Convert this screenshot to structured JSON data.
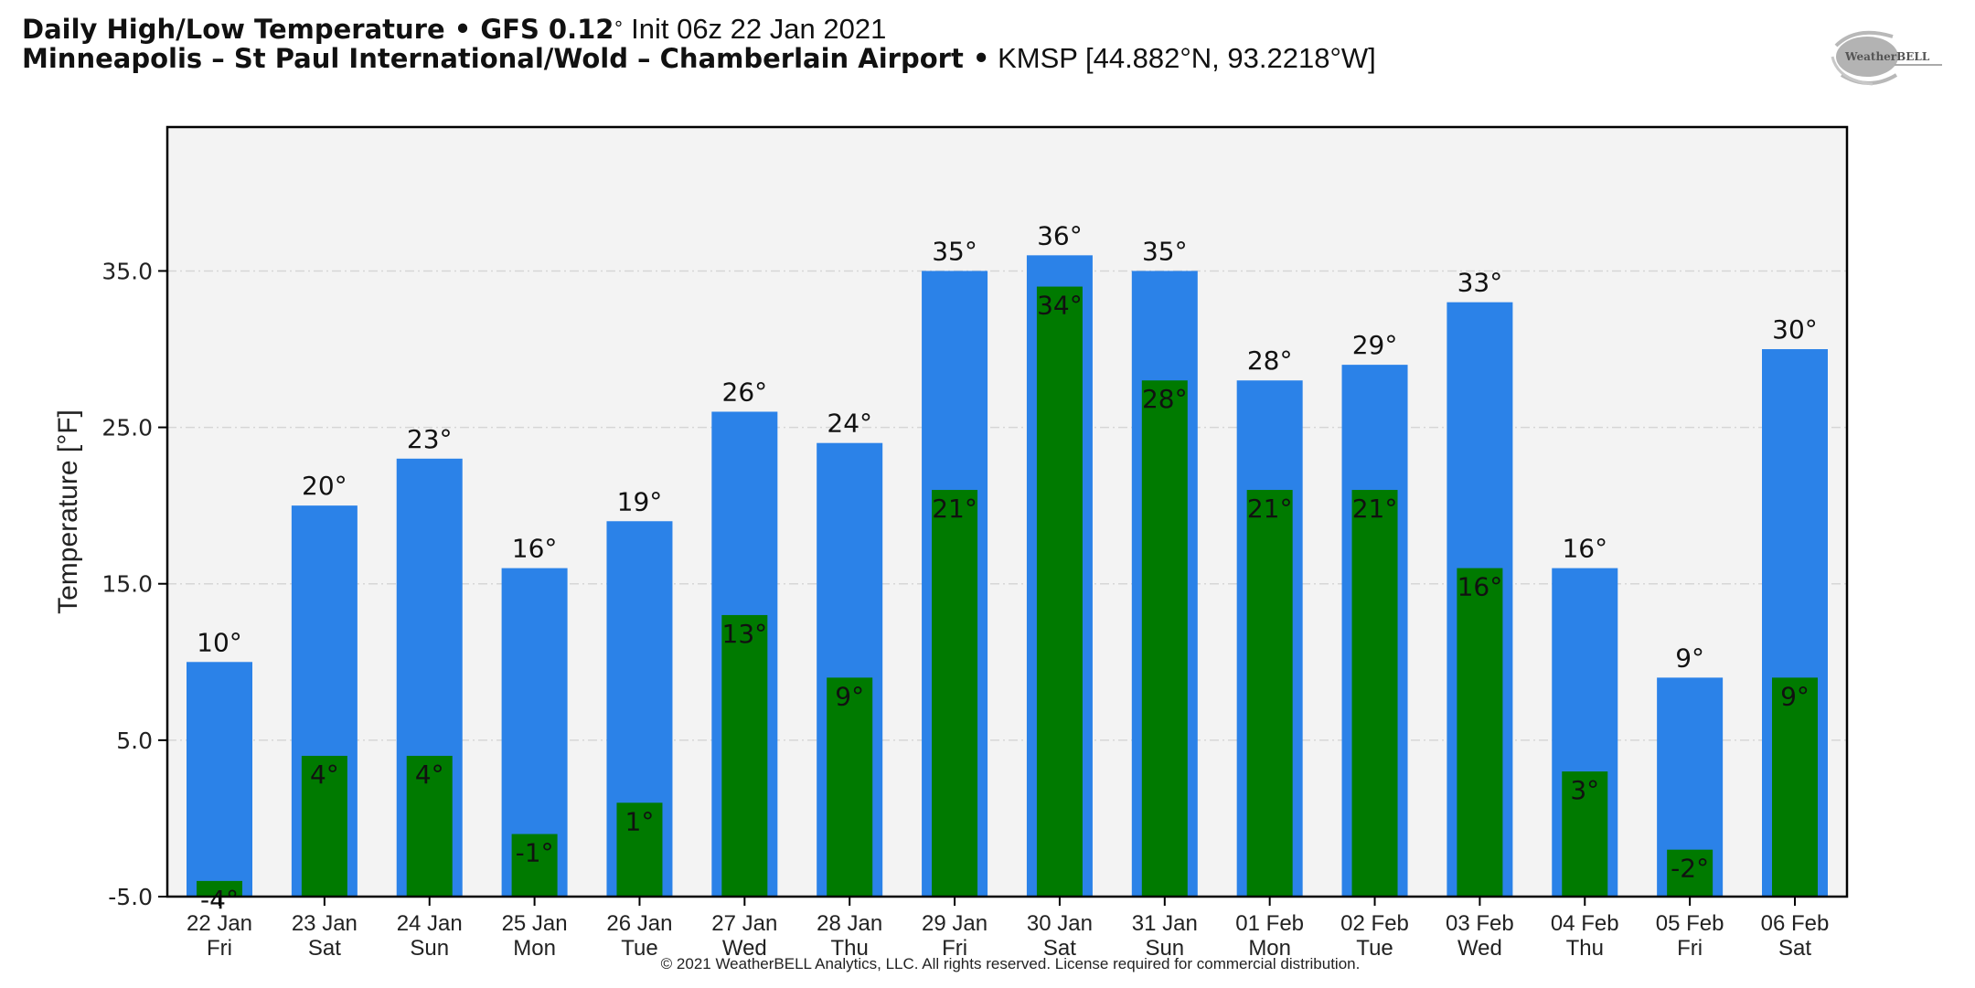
{
  "header": {
    "title_bold": "Daily High/Low Temperature • GFS 0.12",
    "title_degree": "°",
    "title_init": " Init 06z 22 Jan 2021",
    "station_bold": "Minneapolis – St Paul International/Wold – Chamberlain Airport •",
    "station_info": " KMSP [44.882°N, 93.2218°W]"
  },
  "logo": {
    "text": "WeatherBELL",
    "icon": "weatherbell-swirl-logo"
  },
  "footer": {
    "copyright": "© 2021 WeatherBELL Analytics, LLC. All rights reserved. License required for commercial distribution."
  },
  "colors": {
    "high": "#2b82e8",
    "low": "#007a00",
    "plot_bg": "#f3f3f3",
    "grid": "#d6d6d6"
  },
  "chart_data": {
    "type": "bar",
    "title": "Daily High/Low Temperature",
    "xlabel": "",
    "ylabel": "Temperature [°F]",
    "ylim": [
      -5,
      44.2
    ],
    "yticks": [
      -5,
      5,
      15,
      25,
      35
    ],
    "ytick_labels": [
      "-5.0",
      "5.0",
      "15.0",
      "25.0",
      "35.0"
    ],
    "grid": true,
    "categories": [
      {
        "date": "22 Jan",
        "day": "Fri"
      },
      {
        "date": "23 Jan",
        "day": "Sat"
      },
      {
        "date": "24 Jan",
        "day": "Sun"
      },
      {
        "date": "25 Jan",
        "day": "Mon"
      },
      {
        "date": "26 Jan",
        "day": "Tue"
      },
      {
        "date": "27 Jan",
        "day": "Wed"
      },
      {
        "date": "28 Jan",
        "day": "Thu"
      },
      {
        "date": "29 Jan",
        "day": "Fri"
      },
      {
        "date": "30 Jan",
        "day": "Sat"
      },
      {
        "date": "31 Jan",
        "day": "Sun"
      },
      {
        "date": "01 Feb",
        "day": "Mon"
      },
      {
        "date": "02 Feb",
        "day": "Tue"
      },
      {
        "date": "03 Feb",
        "day": "Wed"
      },
      {
        "date": "04 Feb",
        "day": "Thu"
      },
      {
        "date": "05 Feb",
        "day": "Fri"
      },
      {
        "date": "06 Feb",
        "day": "Sat"
      }
    ],
    "series": [
      {
        "name": "High",
        "values": [
          10,
          20,
          23,
          16,
          19,
          26,
          24,
          35,
          36,
          35,
          28,
          29,
          33,
          16,
          9,
          30
        ]
      },
      {
        "name": "Low",
        "values": [
          -4,
          4,
          4,
          -1,
          1,
          13,
          9,
          21,
          34,
          28,
          21,
          21,
          16,
          3,
          -2,
          9
        ]
      }
    ],
    "label_suffix": "°"
  }
}
